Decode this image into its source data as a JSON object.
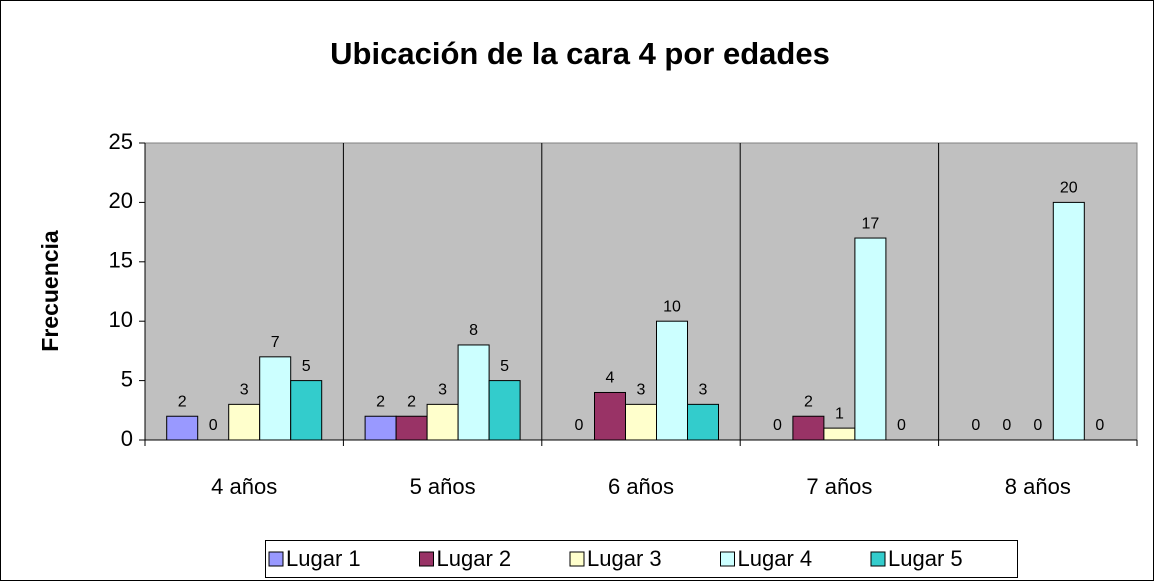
{
  "chart_data": {
    "type": "bar",
    "title": "Ubicación de la cara 4 por edades",
    "y_label": "Frecuencia",
    "categories": [
      "4 años",
      "5 años",
      "6 años",
      "7 años",
      "8 años"
    ],
    "series": [
      {
        "name": "Lugar 1",
        "color": "#9999ff",
        "values": [
          2,
          2,
          0,
          0,
          0
        ]
      },
      {
        "name": "Lugar 2",
        "color": "#993366",
        "values": [
          0,
          2,
          4,
          2,
          0
        ]
      },
      {
        "name": "Lugar 3",
        "color": "#ffffcc",
        "values": [
          3,
          3,
          3,
          1,
          0
        ]
      },
      {
        "name": "Lugar 4",
        "color": "#ccffff",
        "values": [
          7,
          8,
          10,
          17,
          20
        ]
      },
      {
        "name": "Lugar 5",
        "color": "#33cccc",
        "values": [
          5,
          5,
          3,
          0,
          0
        ]
      }
    ],
    "ylim": [
      0,
      25
    ],
    "yticks": [
      0,
      5,
      10,
      15,
      20,
      25
    ],
    "plot_background": "#c0c0c0",
    "legend": "bottom"
  }
}
